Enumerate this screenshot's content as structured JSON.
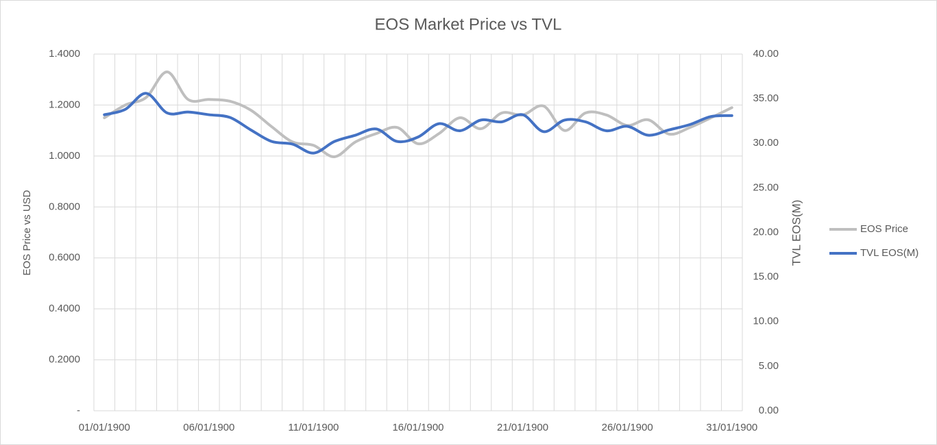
{
  "chart_data": {
    "type": "line",
    "title": "EOS Market Price vs TVL",
    "y_label": "EOS Price vs USD",
    "y2_label": "TVL EOS(M)",
    "categories": [
      "01/01/1900",
      null,
      null,
      null,
      null,
      "06/01/1900",
      null,
      null,
      null,
      null,
      "11/01/1900",
      null,
      null,
      null,
      null,
      "16/01/1900",
      null,
      null,
      null,
      null,
      "21/01/1900",
      null,
      null,
      null,
      null,
      "26/01/1900",
      null,
      null,
      null,
      null,
      "31/01/1900"
    ],
    "series": [
      {
        "name": "EOS Price",
        "color": "#bfbfbf",
        "values": [
          1.15,
          1.2,
          1.23,
          1.33,
          1.222,
          1.222,
          1.215,
          1.18,
          1.115,
          1.055,
          1.042,
          0.997,
          1.055,
          1.088,
          1.112,
          1.048,
          1.088,
          1.15,
          1.107,
          1.169,
          1.161,
          1.196,
          1.1,
          1.169,
          1.161,
          1.12,
          1.142,
          1.086,
          1.112,
          1.15,
          1.19
        ]
      },
      {
        "name": "TVL EOS(M)",
        "color": "#4472c4",
        "axis": "y2",
        "values": [
          33.2,
          33.8,
          35.6,
          33.4,
          33.5,
          33.2,
          32.9,
          31.5,
          30.2,
          29.9,
          28.9,
          30.2,
          30.9,
          31.6,
          30.2,
          30.7,
          32.2,
          31.4,
          32.6,
          32.4,
          33.2,
          31.3,
          32.6,
          32.4,
          31.4,
          31.9,
          30.9,
          31.5,
          32.1,
          33.0,
          33.1
        ]
      }
    ],
    "ylim": [
      0,
      1.4
    ],
    "yticks": [
      {
        "value": 0,
        "label": "-"
      },
      {
        "value": 0.2,
        "label": "0.2000"
      },
      {
        "value": 0.4,
        "label": "0.4000"
      },
      {
        "value": 0.6,
        "label": "0.6000"
      },
      {
        "value": 0.8,
        "label": "0.8000"
      },
      {
        "value": 1.0,
        "label": "1.0000"
      },
      {
        "value": 1.2,
        "label": "1.2000"
      },
      {
        "value": 1.4,
        "label": "1.4000"
      }
    ],
    "y2lim": [
      0,
      40
    ],
    "y2ticks": [
      {
        "value": 0,
        "label": "0.00"
      },
      {
        "value": 5,
        "label": "5.00"
      },
      {
        "value": 10,
        "label": "10.00"
      },
      {
        "value": 15,
        "label": "15.00"
      },
      {
        "value": 20,
        "label": "20.00"
      },
      {
        "value": 25,
        "label": "25.00"
      },
      {
        "value": 30,
        "label": "30.00"
      },
      {
        "value": 35,
        "label": "35.00"
      },
      {
        "value": 40,
        "label": "40.00"
      }
    ],
    "grid": true,
    "legend": "right"
  }
}
